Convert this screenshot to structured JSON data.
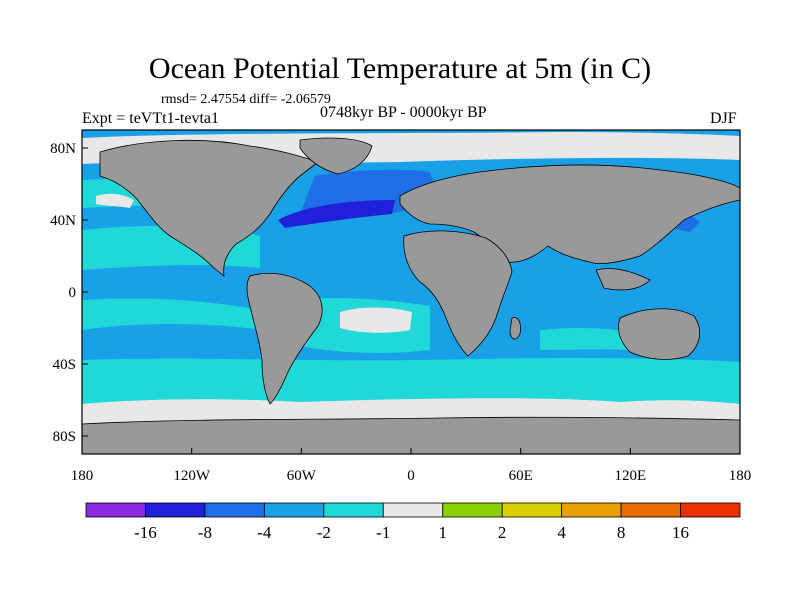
{
  "title": "Ocean Potential Temperature at 5m (in C)",
  "stats": "rmsd= 2.47554 diff= -2.06579",
  "experiment": "Expt = teVTt1-tevta1",
  "period": "0748kyr BP - 0000kyr BP",
  "season": "DJF",
  "lat_ticks": [
    {
      "label": "80N",
      "lat": 80
    },
    {
      "label": "40N",
      "lat": 40
    },
    {
      "label": "0",
      "lat": 0
    },
    {
      "label": "40S",
      "lat": -40
    },
    {
      "label": "80S",
      "lat": -80
    }
  ],
  "lon_ticks": [
    {
      "label": "180",
      "lon": -180
    },
    {
      "label": "120W",
      "lon": -120
    },
    {
      "label": "60W",
      "lon": -60
    },
    {
      "label": "0",
      "lon": 0
    },
    {
      "label": "60E",
      "lon": 60
    },
    {
      "label": "120E",
      "lon": 120
    },
    {
      "label": "180",
      "lon": 180
    }
  ],
  "colorbar": {
    "colors": [
      "#8a2be2",
      "#2020d8",
      "#1e6ee6",
      "#1aa0e6",
      "#20d8d8",
      "#e8e8e8",
      "#88d000",
      "#d8d000",
      "#e8a000",
      "#e86a00",
      "#e83000"
    ],
    "labels": [
      "-16",
      "-8",
      "-4",
      "-2",
      "-1",
      "1",
      "2",
      "4",
      "8",
      "16"
    ]
  },
  "colors": {
    "land": "#999999",
    "ocean_main": "#1aa0e6",
    "ocean_light": "#20d8d8",
    "ocean_cold": "#1e6ee6",
    "ocean_deep": "#2020d8",
    "neutral": "#e8e8e8"
  }
}
